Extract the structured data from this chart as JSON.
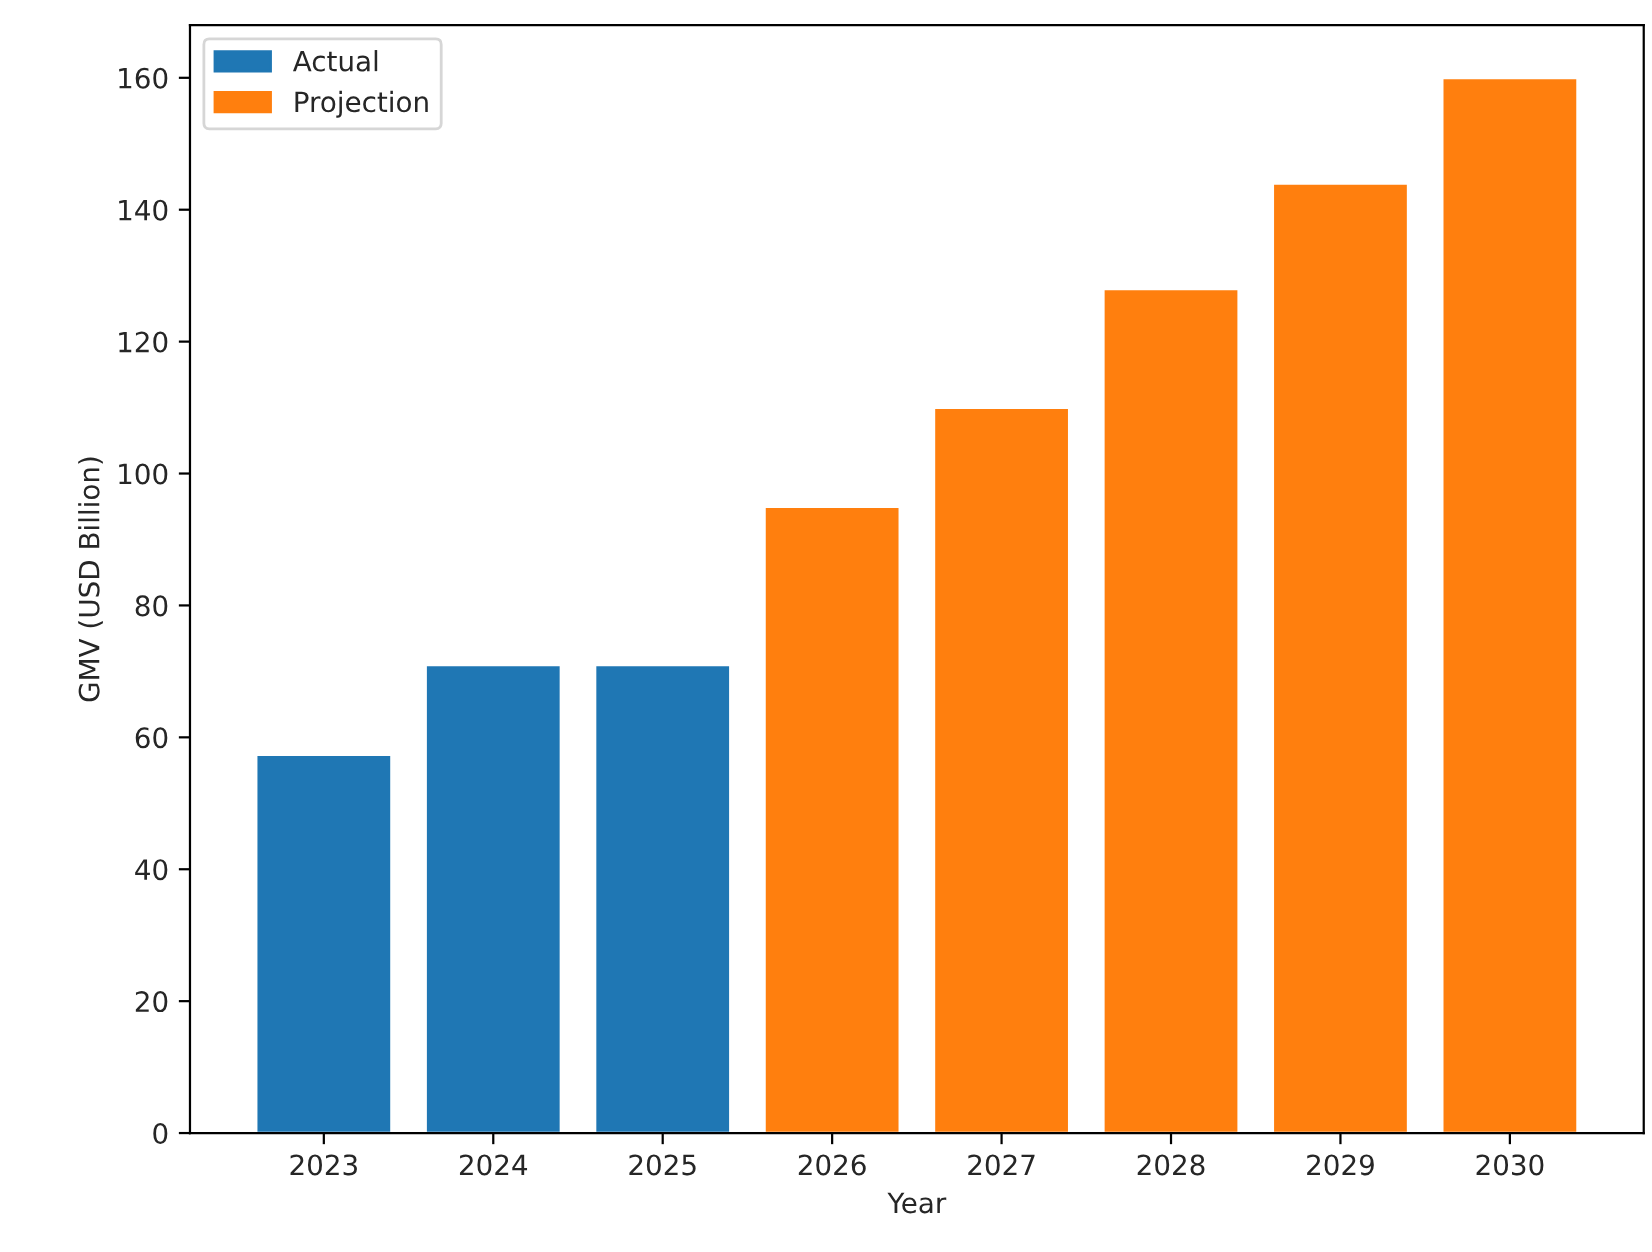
{
  "chart_data": {
    "type": "bar",
    "xlabel": "Year",
    "ylabel": "GMV (USD Billion)",
    "categories": [
      "2023",
      "2024",
      "2025",
      "2026",
      "2027",
      "2028",
      "2029",
      "2030"
    ],
    "series": [
      {
        "name": "Actual",
        "color": "#1f77b4",
        "values": [
          57.4,
          71,
          71,
          null,
          null,
          null,
          null,
          null
        ]
      },
      {
        "name": "Projection",
        "color": "#ff7f0e",
        "values": [
          null,
          null,
          null,
          95,
          110,
          128,
          144,
          160
        ]
      }
    ],
    "ylim": [
      0,
      168
    ],
    "yticks": [
      0,
      20,
      40,
      60,
      80,
      100,
      120,
      140,
      160
    ],
    "grid": false,
    "legend": "top left"
  }
}
